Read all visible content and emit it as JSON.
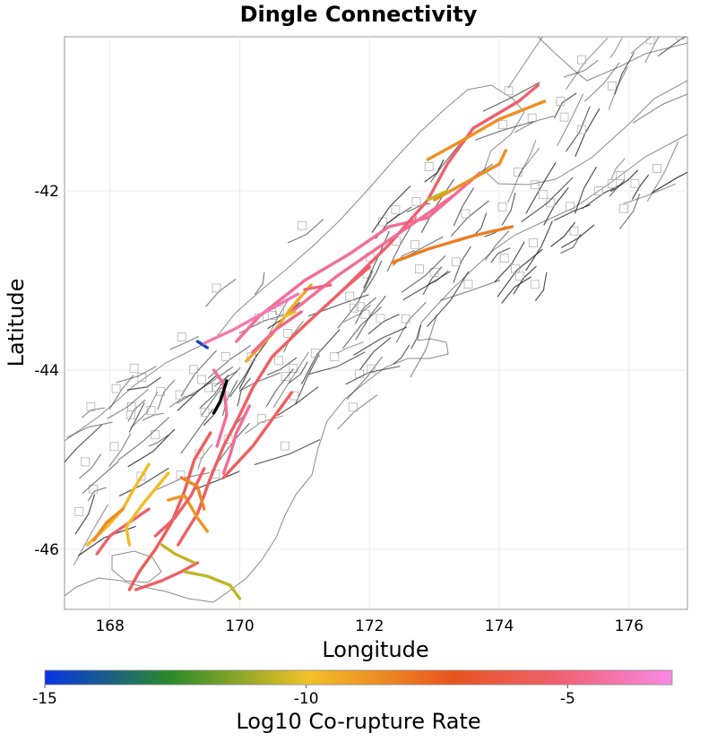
{
  "chart_data": {
    "type": "map",
    "title": "Dingle Connectivity",
    "xlabel": "Longitude",
    "ylabel": "Latitude",
    "xlim": [
      167.3,
      176.9
    ],
    "ylim": [
      -46.67,
      -40.28
    ],
    "xticks": [
      168,
      170,
      172,
      174,
      176
    ],
    "yticks": [
      -42,
      -44,
      -46
    ],
    "xtick_labels": [
      "168",
      "170",
      "172",
      "174",
      "176"
    ],
    "ytick_labels": [
      "-42",
      "-44",
      "-46"
    ],
    "grid": true,
    "colorbar": {
      "label": "Log10 Co-rupture Rate",
      "range": [
        -15,
        -3
      ],
      "ticks": [
        -15,
        -10,
        -5
      ],
      "tick_labels": [
        "-15",
        "-10",
        "-5"
      ],
      "colors": [
        "#0a32e6",
        "#2a8a2a",
        "#f2c228",
        "#e8541e",
        "#f06070",
        "#f88ae6"
      ]
    },
    "source_fault": {
      "name": "Dingle",
      "color": "#000000",
      "points": [
        [
          169.8,
          -44.12
        ],
        [
          169.7,
          -44.35
        ],
        [
          169.6,
          -44.48
        ]
      ]
    },
    "fault_traces": [
      {
        "value": -5.5,
        "points": [
          [
            169.05,
            -45.95
          ],
          [
            169.35,
            -45.6
          ],
          [
            169.55,
            -45.2
          ],
          [
            169.75,
            -44.85
          ],
          [
            170.0,
            -44.5
          ],
          [
            170.2,
            -44.2
          ],
          [
            170.5,
            -43.85
          ],
          [
            171.0,
            -43.5
          ],
          [
            171.6,
            -43.1
          ],
          [
            172.0,
            -42.85
          ]
        ]
      },
      {
        "value": -4.5,
        "points": [
          [
            169.95,
            -43.68
          ],
          [
            170.3,
            -43.4
          ],
          [
            171.0,
            -43.0
          ],
          [
            171.7,
            -42.7
          ],
          [
            172.3,
            -42.4
          ],
          [
            172.9,
            -42.3
          ],
          [
            173.3,
            -42.05
          ]
        ]
      },
      {
        "value": -5.3,
        "points": [
          [
            171.6,
            -43.1
          ],
          [
            172.3,
            -42.6
          ],
          [
            172.9,
            -42.1
          ],
          [
            173.2,
            -41.7
          ],
          [
            173.6,
            -41.3
          ],
          [
            174.3,
            -41.0
          ],
          [
            174.6,
            -40.82
          ]
        ]
      },
      {
        "value": -4.5,
        "points": [
          [
            170.8,
            -43.35
          ],
          [
            171.5,
            -42.95
          ],
          [
            172.2,
            -42.6
          ],
          [
            172.8,
            -42.3
          ],
          [
            173.3,
            -42.05
          ],
          [
            173.7,
            -41.8
          ]
        ]
      },
      {
        "value": -8.2,
        "points": [
          [
            172.35,
            -42.8
          ],
          [
            172.9,
            -42.65
          ],
          [
            173.6,
            -42.5
          ],
          [
            174.2,
            -42.4
          ]
        ]
      },
      {
        "value": -8.7,
        "points": [
          [
            172.9,
            -41.65
          ],
          [
            173.4,
            -41.45
          ],
          [
            174.0,
            -41.2
          ],
          [
            174.7,
            -41.0
          ]
        ]
      },
      {
        "value": -8.7,
        "points": [
          [
            173.0,
            -42.1
          ],
          [
            173.5,
            -41.9
          ],
          [
            174.0,
            -41.7
          ],
          [
            174.1,
            -41.55
          ]
        ]
      },
      {
        "value": -9.3,
        "points": [
          [
            170.1,
            -43.9
          ],
          [
            170.5,
            -43.6
          ],
          [
            170.8,
            -43.3
          ],
          [
            171.1,
            -43.05
          ]
        ]
      },
      {
        "value": -4.5,
        "points": [
          [
            170.15,
            -44.4
          ],
          [
            169.95,
            -44.7
          ],
          [
            169.85,
            -44.95
          ],
          [
            169.75,
            -45.15
          ]
        ]
      },
      {
        "value": -5.5,
        "points": [
          [
            169.75,
            -45.2
          ],
          [
            170.2,
            -44.85
          ],
          [
            170.5,
            -44.55
          ],
          [
            170.8,
            -44.25
          ]
        ]
      },
      {
        "value": -5.7,
        "points": [
          [
            169.55,
            -44.7
          ],
          [
            169.3,
            -45.0
          ],
          [
            169.15,
            -45.35
          ],
          [
            168.95,
            -45.7
          ]
        ]
      },
      {
        "value": -5.3,
        "points": [
          [
            168.6,
            -45.55
          ],
          [
            168.3,
            -45.7
          ],
          [
            168.0,
            -45.85
          ],
          [
            167.8,
            -46.05
          ]
        ]
      },
      {
        "value": -9.8,
        "points": [
          [
            168.3,
            -45.95
          ],
          [
            168.25,
            -45.75
          ],
          [
            168.5,
            -45.5
          ],
          [
            168.9,
            -45.15
          ]
        ]
      },
      {
        "value": -8.9,
        "points": [
          [
            168.9,
            -45.45
          ],
          [
            169.15,
            -45.4
          ],
          [
            169.35,
            -45.65
          ],
          [
            169.5,
            -45.8
          ]
        ]
      },
      {
        "value": -5.3,
        "points": [
          [
            168.7,
            -45.85
          ],
          [
            169.0,
            -45.65
          ],
          [
            169.25,
            -45.4
          ],
          [
            169.45,
            -45.1
          ]
        ]
      },
      {
        "value": -5.7,
        "points": [
          [
            168.95,
            -45.7
          ],
          [
            168.7,
            -46.0
          ],
          [
            168.45,
            -46.25
          ],
          [
            168.3,
            -46.45
          ]
        ]
      },
      {
        "value": -5.3,
        "points": [
          [
            168.4,
            -46.45
          ],
          [
            168.8,
            -46.35
          ],
          [
            169.1,
            -46.25
          ],
          [
            169.35,
            -46.15
          ]
        ]
      },
      {
        "value": -9.8,
        "points": [
          [
            168.6,
            -45.05
          ],
          [
            168.35,
            -45.35
          ],
          [
            168.2,
            -45.55
          ],
          [
            167.95,
            -45.75
          ],
          [
            167.65,
            -45.95
          ]
        ]
      },
      {
        "value": -8.6,
        "points": [
          [
            167.75,
            -45.9
          ],
          [
            167.95,
            -45.7
          ],
          [
            168.2,
            -45.55
          ]
        ]
      },
      {
        "value": -10.6,
        "points": [
          [
            169.15,
            -46.25
          ],
          [
            169.5,
            -46.3
          ],
          [
            169.85,
            -46.4
          ],
          [
            170.0,
            -46.55
          ]
        ]
      },
      {
        "value": -10.6,
        "points": [
          [
            168.8,
            -45.95
          ],
          [
            169.0,
            -46.05
          ],
          [
            169.3,
            -46.15
          ]
        ]
      },
      {
        "value": -10.1,
        "points": [
          [
            170.7,
            -43.4
          ],
          [
            170.85,
            -43.35
          ]
        ]
      },
      {
        "value": -10.6,
        "points": [
          [
            172.9,
            -42.1
          ],
          [
            173.05,
            -42.05
          ],
          [
            173.2,
            -42.0
          ]
        ]
      },
      {
        "value": -14.5,
        "points": [
          [
            169.35,
            -43.68
          ],
          [
            169.5,
            -43.75
          ]
        ]
      },
      {
        "value": -3.9,
        "points": [
          [
            169.45,
            -43.7
          ],
          [
            169.9,
            -43.55
          ],
          [
            170.4,
            -43.35
          ],
          [
            170.9,
            -43.15
          ]
        ]
      },
      {
        "value": -4.7,
        "points": [
          [
            170.2,
            -43.8
          ],
          [
            170.55,
            -43.55
          ],
          [
            170.95,
            -43.35
          ]
        ]
      },
      {
        "value": -4.5,
        "points": [
          [
            169.6,
            -44.0
          ],
          [
            169.75,
            -44.15
          ],
          [
            169.8,
            -44.5
          ],
          [
            169.65,
            -44.85
          ]
        ]
      },
      {
        "value": -8.4,
        "points": [
          [
            169.1,
            -45.2
          ],
          [
            169.35,
            -45.3
          ],
          [
            169.45,
            -45.55
          ]
        ]
      },
      {
        "value": -4.9,
        "points": [
          [
            171.0,
            -43.1
          ],
          [
            171.4,
            -43.05
          ]
        ]
      }
    ]
  }
}
